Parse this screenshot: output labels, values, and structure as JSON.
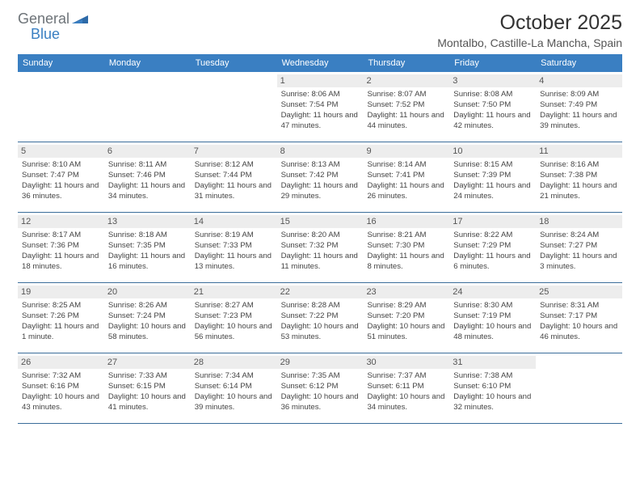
{
  "logo": {
    "text1": "General",
    "text2": "Blue"
  },
  "title": "October 2025",
  "location": "Montalbo, Castille-La Mancha, Spain",
  "colors": {
    "header_bg": "#3a7fc2",
    "header_text": "#ffffff",
    "week_divider": "#3a6d9a",
    "daynum_bg": "#ededed",
    "logo_gray": "#6d7378",
    "logo_blue": "#3a7fc2",
    "page_bg": "#ffffff"
  },
  "day_headers": [
    "Sunday",
    "Monday",
    "Tuesday",
    "Wednesday",
    "Thursday",
    "Friday",
    "Saturday"
  ],
  "weeks": [
    [
      {
        "num": "",
        "sunrise": "",
        "sunset": "",
        "daylight": ""
      },
      {
        "num": "",
        "sunrise": "",
        "sunset": "",
        "daylight": ""
      },
      {
        "num": "",
        "sunrise": "",
        "sunset": "",
        "daylight": ""
      },
      {
        "num": "1",
        "sunrise": "Sunrise: 8:06 AM",
        "sunset": "Sunset: 7:54 PM",
        "daylight": "Daylight: 11 hours and 47 minutes."
      },
      {
        "num": "2",
        "sunrise": "Sunrise: 8:07 AM",
        "sunset": "Sunset: 7:52 PM",
        "daylight": "Daylight: 11 hours and 44 minutes."
      },
      {
        "num": "3",
        "sunrise": "Sunrise: 8:08 AM",
        "sunset": "Sunset: 7:50 PM",
        "daylight": "Daylight: 11 hours and 42 minutes."
      },
      {
        "num": "4",
        "sunrise": "Sunrise: 8:09 AM",
        "sunset": "Sunset: 7:49 PM",
        "daylight": "Daylight: 11 hours and 39 minutes."
      }
    ],
    [
      {
        "num": "5",
        "sunrise": "Sunrise: 8:10 AM",
        "sunset": "Sunset: 7:47 PM",
        "daylight": "Daylight: 11 hours and 36 minutes."
      },
      {
        "num": "6",
        "sunrise": "Sunrise: 8:11 AM",
        "sunset": "Sunset: 7:46 PM",
        "daylight": "Daylight: 11 hours and 34 minutes."
      },
      {
        "num": "7",
        "sunrise": "Sunrise: 8:12 AM",
        "sunset": "Sunset: 7:44 PM",
        "daylight": "Daylight: 11 hours and 31 minutes."
      },
      {
        "num": "8",
        "sunrise": "Sunrise: 8:13 AM",
        "sunset": "Sunset: 7:42 PM",
        "daylight": "Daylight: 11 hours and 29 minutes."
      },
      {
        "num": "9",
        "sunrise": "Sunrise: 8:14 AM",
        "sunset": "Sunset: 7:41 PM",
        "daylight": "Daylight: 11 hours and 26 minutes."
      },
      {
        "num": "10",
        "sunrise": "Sunrise: 8:15 AM",
        "sunset": "Sunset: 7:39 PM",
        "daylight": "Daylight: 11 hours and 24 minutes."
      },
      {
        "num": "11",
        "sunrise": "Sunrise: 8:16 AM",
        "sunset": "Sunset: 7:38 PM",
        "daylight": "Daylight: 11 hours and 21 minutes."
      }
    ],
    [
      {
        "num": "12",
        "sunrise": "Sunrise: 8:17 AM",
        "sunset": "Sunset: 7:36 PM",
        "daylight": "Daylight: 11 hours and 18 minutes."
      },
      {
        "num": "13",
        "sunrise": "Sunrise: 8:18 AM",
        "sunset": "Sunset: 7:35 PM",
        "daylight": "Daylight: 11 hours and 16 minutes."
      },
      {
        "num": "14",
        "sunrise": "Sunrise: 8:19 AM",
        "sunset": "Sunset: 7:33 PM",
        "daylight": "Daylight: 11 hours and 13 minutes."
      },
      {
        "num": "15",
        "sunrise": "Sunrise: 8:20 AM",
        "sunset": "Sunset: 7:32 PM",
        "daylight": "Daylight: 11 hours and 11 minutes."
      },
      {
        "num": "16",
        "sunrise": "Sunrise: 8:21 AM",
        "sunset": "Sunset: 7:30 PM",
        "daylight": "Daylight: 11 hours and 8 minutes."
      },
      {
        "num": "17",
        "sunrise": "Sunrise: 8:22 AM",
        "sunset": "Sunset: 7:29 PM",
        "daylight": "Daylight: 11 hours and 6 minutes."
      },
      {
        "num": "18",
        "sunrise": "Sunrise: 8:24 AM",
        "sunset": "Sunset: 7:27 PM",
        "daylight": "Daylight: 11 hours and 3 minutes."
      }
    ],
    [
      {
        "num": "19",
        "sunrise": "Sunrise: 8:25 AM",
        "sunset": "Sunset: 7:26 PM",
        "daylight": "Daylight: 11 hours and 1 minute."
      },
      {
        "num": "20",
        "sunrise": "Sunrise: 8:26 AM",
        "sunset": "Sunset: 7:24 PM",
        "daylight": "Daylight: 10 hours and 58 minutes."
      },
      {
        "num": "21",
        "sunrise": "Sunrise: 8:27 AM",
        "sunset": "Sunset: 7:23 PM",
        "daylight": "Daylight: 10 hours and 56 minutes."
      },
      {
        "num": "22",
        "sunrise": "Sunrise: 8:28 AM",
        "sunset": "Sunset: 7:22 PM",
        "daylight": "Daylight: 10 hours and 53 minutes."
      },
      {
        "num": "23",
        "sunrise": "Sunrise: 8:29 AM",
        "sunset": "Sunset: 7:20 PM",
        "daylight": "Daylight: 10 hours and 51 minutes."
      },
      {
        "num": "24",
        "sunrise": "Sunrise: 8:30 AM",
        "sunset": "Sunset: 7:19 PM",
        "daylight": "Daylight: 10 hours and 48 minutes."
      },
      {
        "num": "25",
        "sunrise": "Sunrise: 8:31 AM",
        "sunset": "Sunset: 7:17 PM",
        "daylight": "Daylight: 10 hours and 46 minutes."
      }
    ],
    [
      {
        "num": "26",
        "sunrise": "Sunrise: 7:32 AM",
        "sunset": "Sunset: 6:16 PM",
        "daylight": "Daylight: 10 hours and 43 minutes."
      },
      {
        "num": "27",
        "sunrise": "Sunrise: 7:33 AM",
        "sunset": "Sunset: 6:15 PM",
        "daylight": "Daylight: 10 hours and 41 minutes."
      },
      {
        "num": "28",
        "sunrise": "Sunrise: 7:34 AM",
        "sunset": "Sunset: 6:14 PM",
        "daylight": "Daylight: 10 hours and 39 minutes."
      },
      {
        "num": "29",
        "sunrise": "Sunrise: 7:35 AM",
        "sunset": "Sunset: 6:12 PM",
        "daylight": "Daylight: 10 hours and 36 minutes."
      },
      {
        "num": "30",
        "sunrise": "Sunrise: 7:37 AM",
        "sunset": "Sunset: 6:11 PM",
        "daylight": "Daylight: 10 hours and 34 minutes."
      },
      {
        "num": "31",
        "sunrise": "Sunrise: 7:38 AM",
        "sunset": "Sunset: 6:10 PM",
        "daylight": "Daylight: 10 hours and 32 minutes."
      },
      {
        "num": "",
        "sunrise": "",
        "sunset": "",
        "daylight": ""
      }
    ]
  ]
}
